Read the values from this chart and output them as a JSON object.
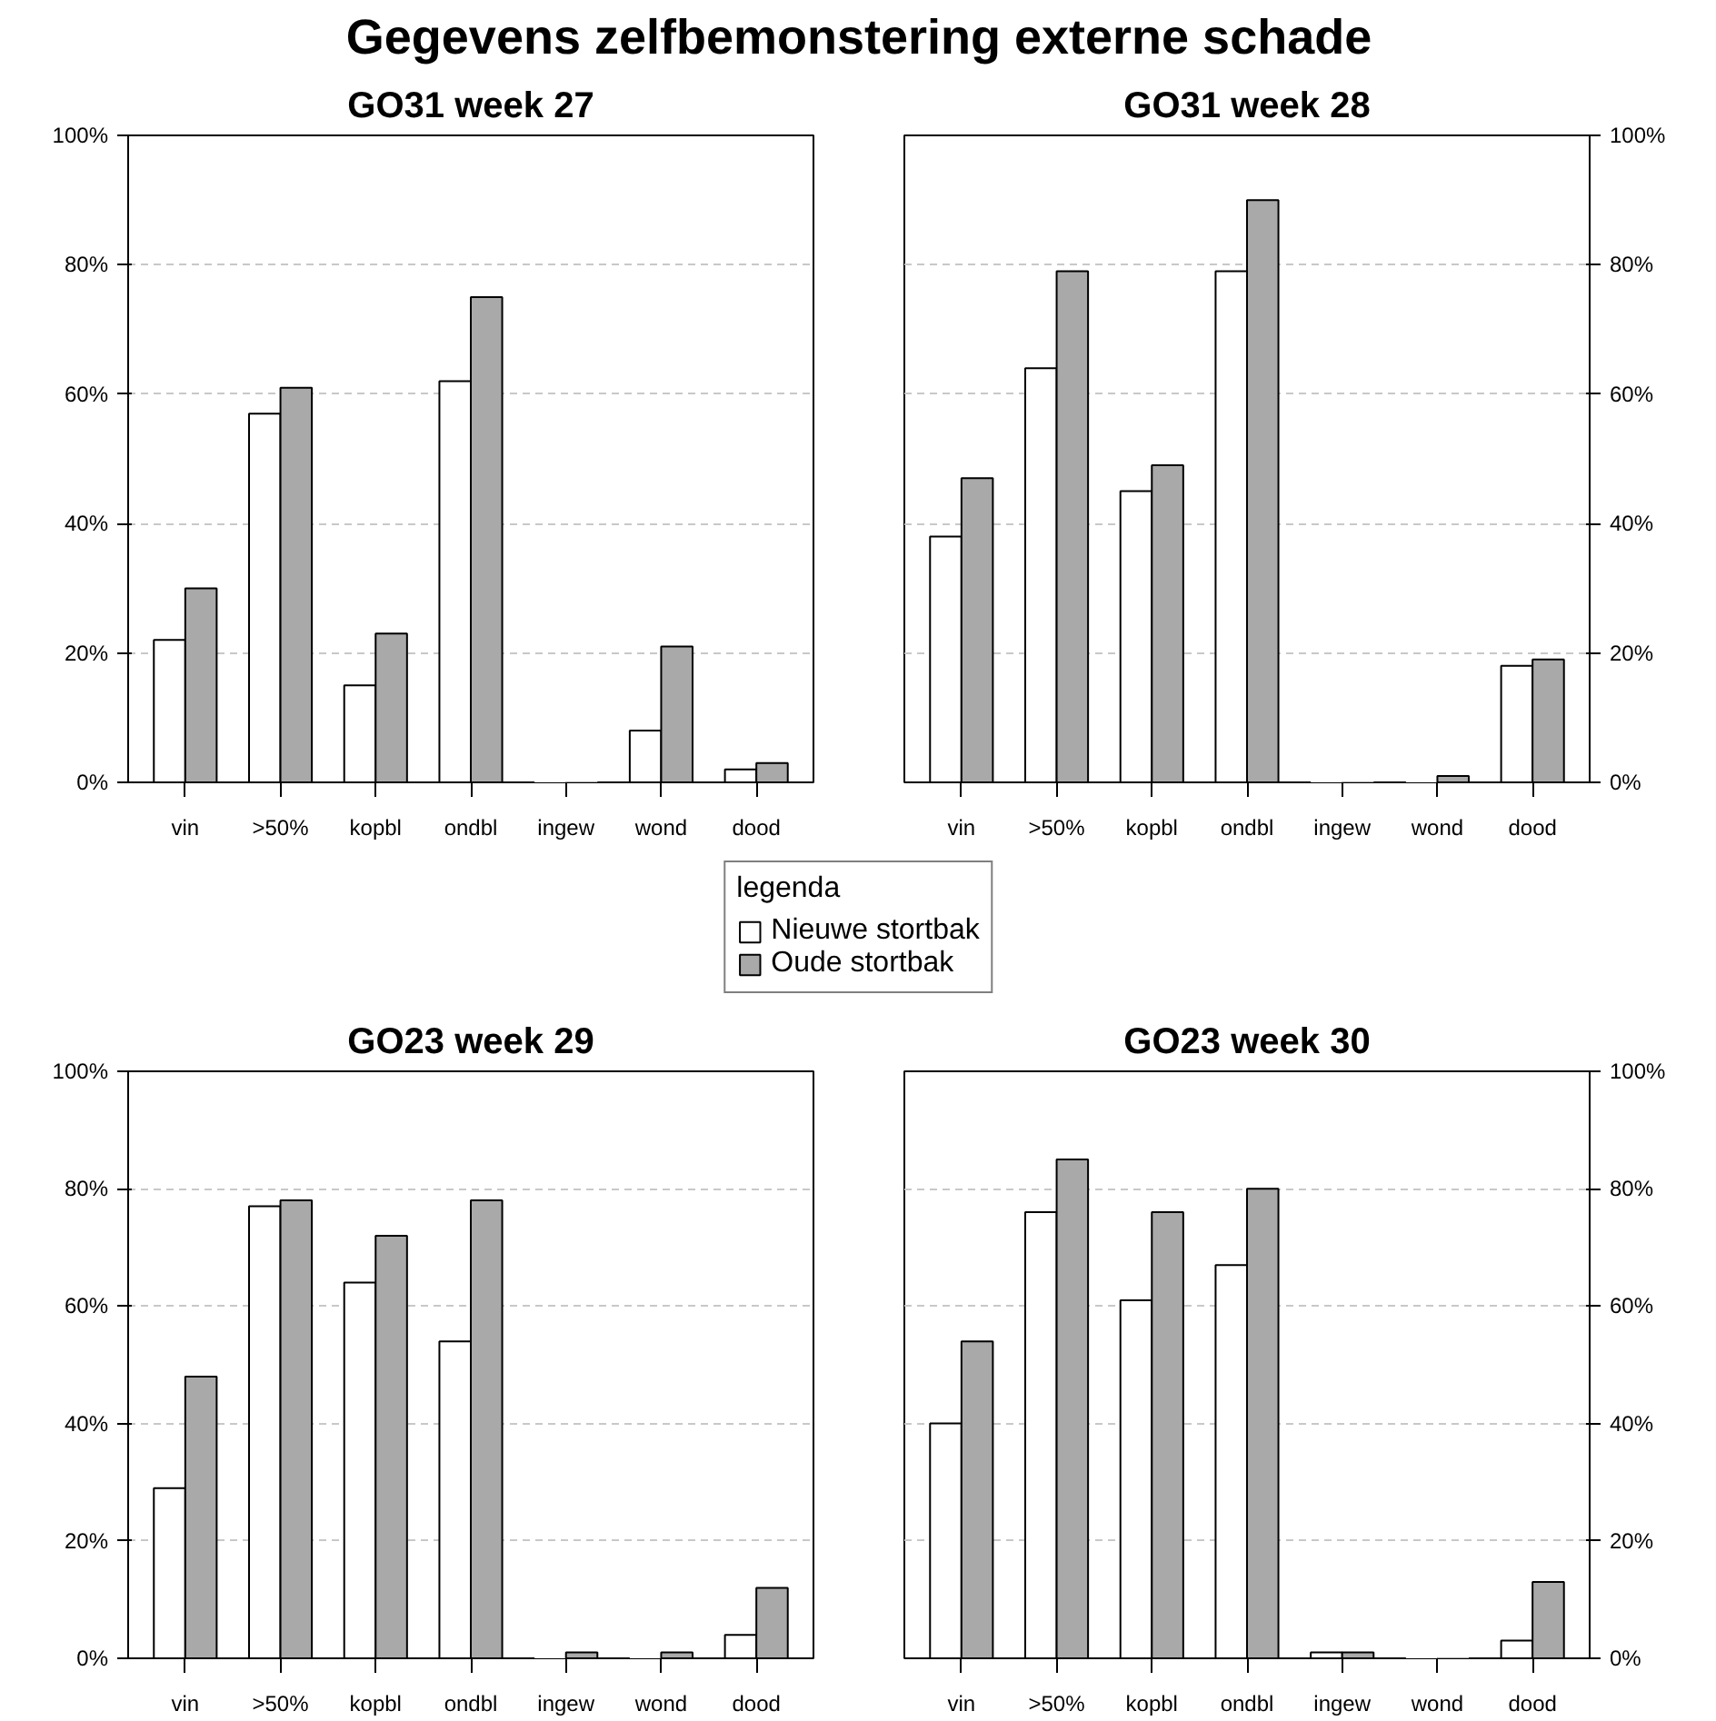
{
  "chart_data": [
    {
      "type": "bar",
      "title": "GO31 week 27",
      "annotations": [
        "Gegevens zelfbemonstering externe schade"
      ],
      "categories": [
        "vin",
        ">50%",
        "kopbl",
        "ondbl",
        "ingew",
        "wond",
        "dood"
      ],
      "series": [
        {
          "name": "Nieuwe stortbak",
          "color": "#ffffff",
          "values": [
            22,
            57,
            15,
            62,
            0,
            8,
            2
          ]
        },
        {
          "name": "Oude stortbak",
          "color": "#a9a9a9",
          "values": [
            30,
            61,
            23,
            75,
            0,
            21,
            3
          ]
        }
      ],
      "ylim": [
        0,
        100
      ],
      "yticks": [
        {
          "value": 0,
          "label": "0%"
        },
        {
          "value": 20,
          "label": "20%"
        },
        {
          "value": 40,
          "label": "40%"
        },
        {
          "value": 60,
          "label": "60%"
        },
        {
          "value": 80,
          "label": "80%"
        },
        {
          "value": 100,
          "label": "100%"
        }
      ],
      "grid": "y",
      "legend": "bottom right",
      "legend_title": "legenda"
    },
    {
      "type": "bar",
      "title": "GO31 week 28",
      "categories": [
        "vin",
        ">50%",
        "kopbl",
        "ondbl",
        "ingew",
        "wond",
        "dood"
      ],
      "series": [
        {
          "color": "#ffffff",
          "values": [
            38,
            64,
            45,
            79,
            0,
            0,
            18
          ],
          "axis": "y2"
        },
        {
          "color": "#a9a9a9",
          "values": [
            47,
            79,
            49,
            90,
            0,
            1,
            19
          ],
          "axis": "y2"
        }
      ],
      "y2lim": [
        0,
        100
      ],
      "y2ticks": [
        {
          "value": 0,
          "label": "0%"
        },
        {
          "value": 20,
          "label": "20%"
        },
        {
          "value": 40,
          "label": "40%"
        },
        {
          "value": 60,
          "label": "60%"
        },
        {
          "value": 80,
          "label": "80%"
        },
        {
          "value": 100,
          "label": "100%"
        }
      ],
      "grid": "y"
    },
    {
      "type": "bar",
      "title": "GO23 week 29",
      "categories": [
        "vin",
        ">50%",
        "kopbl",
        "ondbl",
        "ingew",
        "wond",
        "dood"
      ],
      "series": [
        {
          "color": "#ffffff",
          "values": [
            29,
            77,
            64,
            54,
            0,
            0,
            4
          ]
        },
        {
          "color": "#a9a9a9",
          "values": [
            48,
            78,
            72,
            78,
            1,
            1,
            12
          ]
        }
      ],
      "ylim": [
        0,
        100
      ],
      "yticks": [
        {
          "value": 0,
          "label": "0%"
        },
        {
          "value": 20,
          "label": "20%"
        },
        {
          "value": 40,
          "label": "40%"
        },
        {
          "value": 60,
          "label": "60%"
        },
        {
          "value": 80,
          "label": "80%"
        },
        {
          "value": 100,
          "label": "100%"
        }
      ],
      "grid": "y"
    },
    {
      "type": "bar",
      "title": "GO23 week 30",
      "categories": [
        "vin",
        ">50%",
        "kopbl",
        "ondbl",
        "ingew",
        "wond",
        "dood"
      ],
      "series": [
        {
          "color": "#ffffff",
          "values": [
            40,
            76,
            61,
            67,
            1,
            0,
            3
          ],
          "axis": "y2"
        },
        {
          "color": "#a9a9a9",
          "values": [
            54,
            85,
            76,
            80,
            1,
            0,
            13
          ],
          "axis": "y2"
        }
      ],
      "y2lim": [
        0,
        100
      ],
      "y2ticks": [
        {
          "value": 0,
          "label": "0%"
        },
        {
          "value": 20,
          "label": "20%"
        },
        {
          "value": 40,
          "label": "40%"
        },
        {
          "value": 60,
          "label": "60%"
        },
        {
          "value": 80,
          "label": "80%"
        },
        {
          "value": 100,
          "label": "100%"
        }
      ],
      "grid": "y"
    }
  ]
}
